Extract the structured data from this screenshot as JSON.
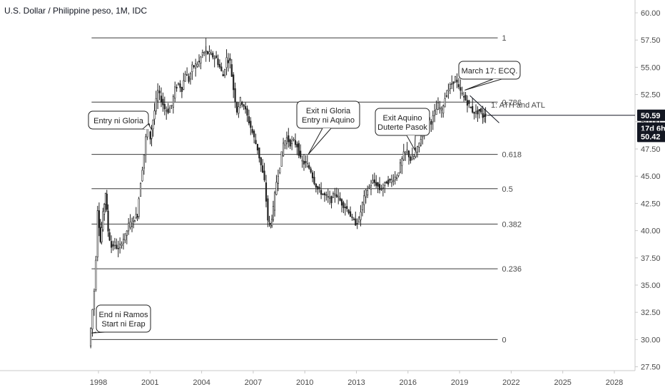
{
  "chart_data": {
    "type": "candlestick",
    "title": "U.S. Dollar / Philippine peso, 1M, IDC",
    "y_ticks": [
      "60.00",
      "57.50",
      "55.00",
      "52.50",
      "50.00",
      "47.50",
      "45.00",
      "42.50",
      "40.00",
      "37.50",
      "35.00",
      "32.50",
      "30.00",
      "27.50"
    ],
    "ylim": [
      27.5,
      60.0
    ],
    "x_ticks": [
      "1998",
      "2001",
      "2004",
      "2007",
      "2010",
      "2013",
      "2016",
      "2019",
      "2022",
      "2025",
      "2028"
    ],
    "xlim": [
      1997.0,
      2028.9
    ],
    "grid": false,
    "fib_levels": [
      {
        "label": "1",
        "value": 57.7
      },
      {
        "label": "0.786",
        "value": 51.8
      },
      {
        "label": "0.618",
        "value": 47.0
      },
      {
        "label": "0.5",
        "value": 43.85
      },
      {
        "label": "0.382",
        "value": 40.6
      },
      {
        "label": "0.236",
        "value": 36.5
      },
      {
        "label": "0",
        "value": 30.0
      }
    ],
    "fib_range": [
      1997.6,
      2021.3
    ],
    "price_series": [
      [
        1997.5,
        29.4
      ],
      [
        1997.6,
        31.0
      ],
      [
        1997.8,
        34.5
      ],
      [
        1997.9,
        37.5
      ],
      [
        1998.0,
        42.0
      ],
      [
        1998.15,
        39.0
      ],
      [
        1998.3,
        41.5
      ],
      [
        1998.45,
        43.5
      ],
      [
        1998.6,
        40.0
      ],
      [
        1998.8,
        38.5
      ],
      [
        1999.0,
        38.8
      ],
      [
        1999.2,
        38.2
      ],
      [
        1999.4,
        39.0
      ],
      [
        1999.6,
        39.5
      ],
      [
        1999.8,
        40.5
      ],
      [
        2000.0,
        40.8
      ],
      [
        2000.3,
        41.5
      ],
      [
        2000.5,
        44.5
      ],
      [
        2000.7,
        47.0
      ],
      [
        2000.9,
        50.0
      ],
      [
        2001.05,
        48.5
      ],
      [
        2001.3,
        51.0
      ],
      [
        2001.5,
        52.8
      ],
      [
        2001.7,
        52.0
      ],
      [
        2001.9,
        51.2
      ],
      [
        2002.1,
        51.0
      ],
      [
        2002.3,
        51.5
      ],
      [
        2002.5,
        53.0
      ],
      [
        2002.7,
        53.5
      ],
      [
        2002.9,
        53.0
      ],
      [
        2003.1,
        54.5
      ],
      [
        2003.3,
        53.8
      ],
      [
        2003.5,
        55.0
      ],
      [
        2003.7,
        55.2
      ],
      [
        2003.9,
        55.5
      ],
      [
        2004.1,
        56.3
      ],
      [
        2004.3,
        56.4
      ],
      [
        2004.5,
        56.2
      ],
      [
        2004.7,
        56.0
      ],
      [
        2004.9,
        55.8
      ],
      [
        2005.1,
        55.0
      ],
      [
        2005.3,
        54.2
      ],
      [
        2005.5,
        55.8
      ],
      [
        2005.7,
        55.5
      ],
      [
        2005.9,
        53.0
      ],
      [
        2006.1,
        51.0
      ],
      [
        2006.3,
        52.0
      ],
      [
        2006.5,
        51.5
      ],
      [
        2006.7,
        50.5
      ],
      [
        2006.9,
        49.5
      ],
      [
        2007.1,
        48.5
      ],
      [
        2007.3,
        47.5
      ],
      [
        2007.5,
        46.0
      ],
      [
        2007.7,
        44.5
      ],
      [
        2007.9,
        41.0
      ],
      [
        2008.05,
        40.5
      ],
      [
        2008.2,
        42.0
      ],
      [
        2008.4,
        44.5
      ],
      [
        2008.6,
        46.0
      ],
      [
        2008.8,
        48.0
      ],
      [
        2009.0,
        48.5
      ],
      [
        2009.2,
        48.0
      ],
      [
        2009.4,
        48.2
      ],
      [
        2009.6,
        47.8
      ],
      [
        2009.8,
        46.5
      ],
      [
        2010.0,
        46.2
      ],
      [
        2010.2,
        46.0
      ],
      [
        2010.4,
        45.5
      ],
      [
        2010.6,
        44.5
      ],
      [
        2010.8,
        43.8
      ],
      [
        2011.0,
        43.5
      ],
      [
        2011.2,
        43.2
      ],
      [
        2011.4,
        43.0
      ],
      [
        2011.6,
        42.8
      ],
      [
        2011.8,
        43.5
      ],
      [
        2012.0,
        43.0
      ],
      [
        2012.2,
        42.5
      ],
      [
        2012.4,
        42.2
      ],
      [
        2012.6,
        41.8
      ],
      [
        2012.8,
        41.0
      ],
      [
        2013.0,
        40.7
      ],
      [
        2013.2,
        41.0
      ],
      [
        2013.4,
        42.5
      ],
      [
        2013.6,
        43.5
      ],
      [
        2013.8,
        44.0
      ],
      [
        2014.0,
        44.5
      ],
      [
        2014.2,
        44.3
      ],
      [
        2014.4,
        43.8
      ],
      [
        2014.6,
        44.0
      ],
      [
        2014.8,
        44.5
      ],
      [
        2015.0,
        44.5
      ],
      [
        2015.2,
        44.8
      ],
      [
        2015.4,
        45.0
      ],
      [
        2015.6,
        46.0
      ],
      [
        2015.8,
        47.0
      ],
      [
        2016.0,
        47.3
      ],
      [
        2016.2,
        46.5
      ],
      [
        2016.4,
        46.8
      ],
      [
        2016.6,
        47.5
      ],
      [
        2016.8,
        48.5
      ],
      [
        2017.0,
        49.8
      ],
      [
        2017.2,
        50.2
      ],
      [
        2017.4,
        50.0
      ],
      [
        2017.6,
        50.8
      ],
      [
        2017.8,
        51.5
      ],
      [
        2018.0,
        51.0
      ],
      [
        2018.2,
        52.2
      ],
      [
        2018.4,
        53.0
      ],
      [
        2018.6,
        53.5
      ],
      [
        2018.8,
        54.0
      ],
      [
        2019.0,
        53.0
      ],
      [
        2019.2,
        52.5
      ],
      [
        2019.4,
        52.0
      ],
      [
        2019.6,
        51.5
      ],
      [
        2019.8,
        51.0
      ],
      [
        2020.0,
        50.8
      ],
      [
        2020.2,
        51.0
      ],
      [
        2020.4,
        50.5
      ],
      [
        2020.55,
        50.7
      ]
    ],
    "current_price": "50.59",
    "countdown": "17d 6h",
    "second_price": "50.42",
    "annotations": [
      {
        "text": [
          "End ni Ramos",
          "Start ni Erap"
        ]
      },
      {
        "text": [
          "Entry ni Gloria"
        ]
      },
      {
        "text": [
          "Exit ni Gloria",
          "Entry ni Aquino"
        ]
      },
      {
        "text": [
          "Exit Aquino",
          "Duterte Pasok"
        ]
      },
      {
        "text": [
          "March 17: ECQ."
        ]
      }
    ],
    "faded_note": "1:  ATH and ATL"
  },
  "colors": {
    "candle_up": "#222222",
    "candle_down": "#222222",
    "level_line": "#3a3a3a",
    "axis_border": "#c8c8c8",
    "price_label_bg": "#131722",
    "faded_text": "#c8ccd4"
  }
}
